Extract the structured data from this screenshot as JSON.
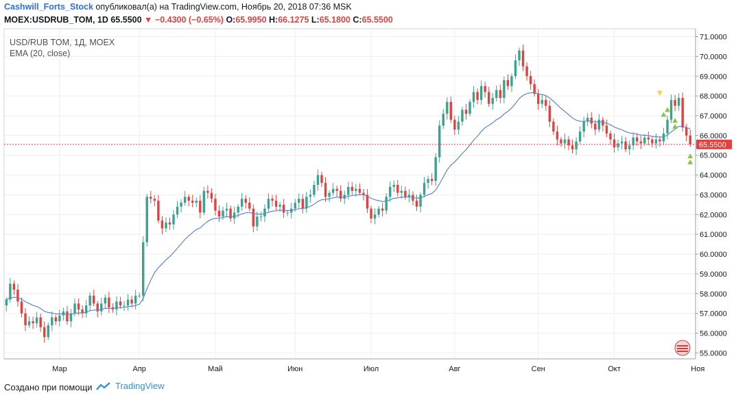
{
  "header": {
    "author": "Cashwill_Forts_Stock",
    "published_text": "опубликовал(а) на TradingView.com, Ноябрь 20, 2018 07:36 MSK",
    "symbol": "MOEX:USDRUB_TOM, 1D",
    "last": "65.5500",
    "change": "−0.4300 (−0.65%)",
    "o_label": "O:",
    "o_value": "65.9950",
    "h_label": "H:",
    "h_value": "66.1275",
    "l_label": "L:",
    "l_value": "65.1800",
    "c_label": "C:",
    "c_value": "65.5500"
  },
  "legend": {
    "instrument": "USD/RUB TOM, 1Д, MOEX",
    "indicator": "EMA (20, close)"
  },
  "footer": {
    "created_with": "Создано при помощи",
    "brand": "TradingView"
  },
  "colors": {
    "up": "#3aa38f",
    "down": "#e0433f",
    "ema": "#5b87c4",
    "price_line": "#e0433f",
    "grid": "#eeeeee",
    "marker_up": "#8bc34a",
    "marker_down": "#f4d03f"
  },
  "chart_data": {
    "type": "candlestick",
    "ylim": [
      54.7,
      71.4
    ],
    "y_ticks": [
      "55.0000",
      "56.0000",
      "57.0000",
      "58.0000",
      "59.0000",
      "60.0000",
      "61.0000",
      "62.0000",
      "63.0000",
      "64.0000",
      "65.0000",
      "66.0000",
      "67.0000",
      "68.0000",
      "69.0000",
      "70.0000",
      "71.0000"
    ],
    "x_ticks": [
      {
        "label": "Мар",
        "index": 14
      },
      {
        "label": "Апр",
        "index": 35
      },
      {
        "label": "Май",
        "index": 55
      },
      {
        "label": "Июн",
        "index": 76
      },
      {
        "label": "Июл",
        "index": 96
      },
      {
        "label": "Авг",
        "index": 118
      },
      {
        "label": "Сен",
        "index": 140
      },
      {
        "label": "Окт",
        "index": 160
      },
      {
        "label": "Ноя",
        "index": 182
      }
    ],
    "last_price": 65.55,
    "last_price_label": "65.5500",
    "closes": [
      57.7,
      58.5,
      58.2,
      57.6,
      57.0,
      56.4,
      56.6,
      56.5,
      56.8,
      56.3,
      55.8,
      56.4,
      56.8,
      56.6,
      56.9,
      57.1,
      56.6,
      57.0,
      57.5,
      57.2,
      57.0,
      57.4,
      57.9,
      57.5,
      57.1,
      57.5,
      57.8,
      57.3,
      57.2,
      57.6,
      57.4,
      57.4,
      57.7,
      57.5,
      57.9,
      57.9,
      60.6,
      62.9,
      62.8,
      62.7,
      61.7,
      61.3,
      61.6,
      61.5,
      62.0,
      62.4,
      62.6,
      62.9,
      62.7,
      62.6,
      62.7,
      62.1,
      63.2,
      63.1,
      62.8,
      62.2,
      61.9,
      62.2,
      62.3,
      61.8,
      62.1,
      62.4,
      62.8,
      62.6,
      62.3,
      61.4,
      61.9,
      61.9,
      62.3,
      62.8,
      62.7,
      62.4,
      62.5,
      62.1,
      62.1,
      62.3,
      62.6,
      62.8,
      62.3,
      62.9,
      63.0,
      63.5,
      64.0,
      63.6,
      62.9,
      63.1,
      63.3,
      63.2,
      62.8,
      63.0,
      63.4,
      63.2,
      63.3,
      63.1,
      63.0,
      62.3,
      61.8,
      62.0,
      62.3,
      62.2,
      62.9,
      63.4,
      63.5,
      63.1,
      63.2,
      62.9,
      63.0,
      62.7,
      62.4,
      63.0,
      63.6,
      63.8,
      63.7,
      64.9,
      66.5,
      67.1,
      67.7,
      66.8,
      66.3,
      66.7,
      67.3,
      67.1,
      67.7,
      68.2,
      67.8,
      68.5,
      68.2,
      67.6,
      67.9,
      68.3,
      67.9,
      68.8,
      68.5,
      69.0,
      69.8,
      70.3,
      69.5,
      69.0,
      68.6,
      68.1,
      67.6,
      67.8,
      67.5,
      66.7,
      66.2,
      65.8,
      65.6,
      65.8,
      65.5,
      65.3,
      65.7,
      66.2,
      66.7,
      66.9,
      66.6,
      66.3,
      66.8,
      66.5,
      66.1,
      65.8,
      65.4,
      65.6,
      65.7,
      65.3,
      65.5,
      65.9,
      65.7,
      65.6,
      65.9,
      65.8,
      65.6,
      65.8,
      65.7,
      66.1,
      66.8,
      67.8,
      67.5,
      67.9,
      66.4,
      66.0,
      65.55
    ],
    "ema_description": "20-period exponential moving average of close"
  }
}
